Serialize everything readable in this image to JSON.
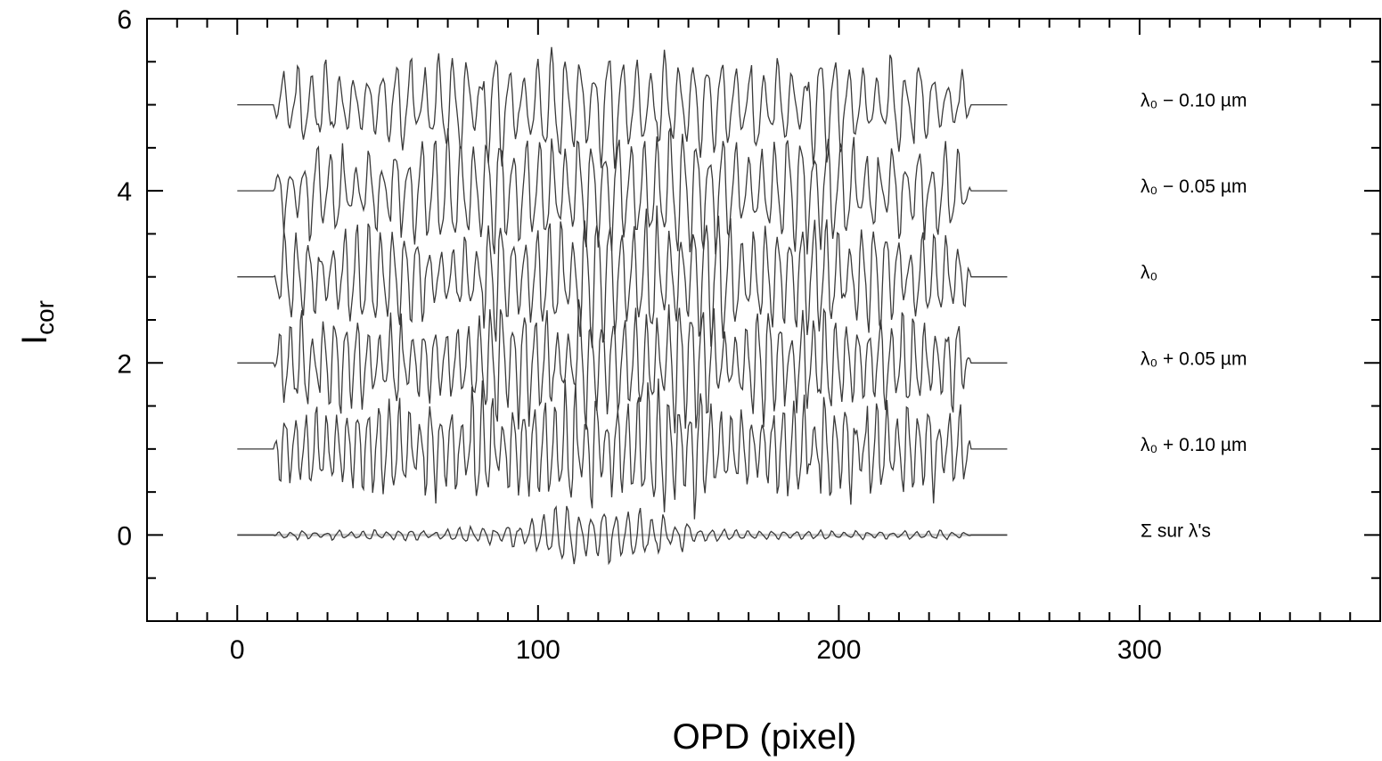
{
  "chart_data": {
    "type": "line",
    "title": "",
    "xlabel": "OPD (pixel)",
    "ylabel_main": "I",
    "ylabel_sub": "cor",
    "xlim": [
      -30,
      380
    ],
    "ylim": [
      -1,
      6
    ],
    "x_ticks": [
      0,
      100,
      200,
      300
    ],
    "x_tick_labels": [
      "0",
      "100",
      "200",
      "300"
    ],
    "y_ticks": [
      0,
      2,
      4,
      6
    ],
    "y_tick_labels": [
      "0",
      "2",
      "4",
      "6"
    ],
    "x_minor_step": 10,
    "y_minor_step": 0.5,
    "grid": false,
    "legend": "none",
    "signal_range": [
      0,
      256
    ],
    "fringe_range": [
      12,
      244
    ],
    "series": [
      {
        "name": "λ₀ − 0.10 µm",
        "baseline": 5,
        "amplitude": 0.42,
        "period": 4.7,
        "color": "#3a3a3a"
      },
      {
        "name": "λ₀ − 0.05 µm",
        "baseline": 4,
        "amplitude": 0.45,
        "period": 4.35,
        "color": "#3a3a3a"
      },
      {
        "name": "λ₀",
        "baseline": 3,
        "amplitude": 0.45,
        "period": 4.0,
        "color": "#3a3a3a"
      },
      {
        "name": "λ₀ + 0.05 µm",
        "baseline": 2,
        "amplitude": 0.45,
        "period": 3.7,
        "color": "#3a3a3a"
      },
      {
        "name": "λ₀ + 0.10 µm",
        "baseline": 1,
        "amplitude": 0.45,
        "period": 3.45,
        "color": "#3a3a3a"
      },
      {
        "name": "Σ sur λ's",
        "baseline": 0,
        "amplitude": 0.15,
        "period": 4.0,
        "color": "#3a3a3a",
        "flat_color": "#c8c8c8"
      }
    ]
  }
}
